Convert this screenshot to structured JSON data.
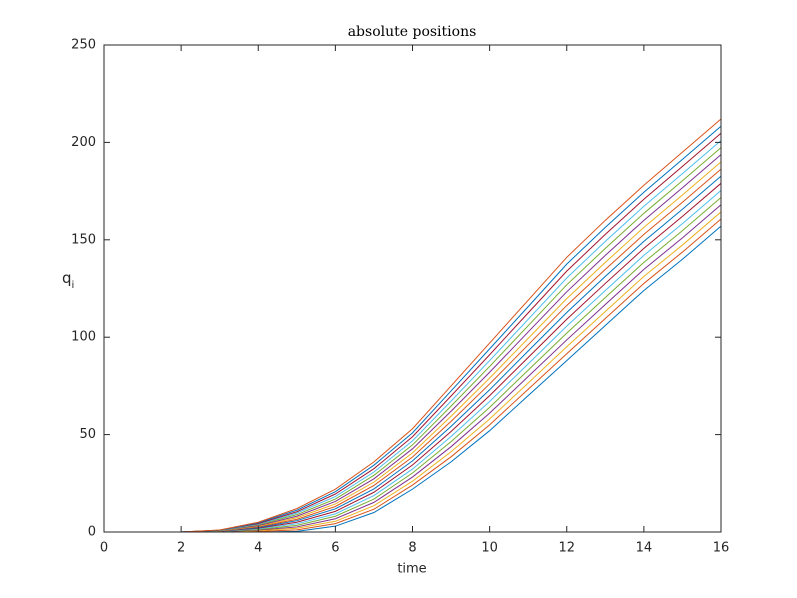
{
  "chart_data": {
    "type": "line",
    "title": "absolute positions",
    "xlabel": "time",
    "ylabel": {
      "text": "q",
      "subscript": "i"
    },
    "x": [
      0,
      1,
      2,
      3,
      4,
      5,
      6,
      7,
      8,
      9,
      10,
      11,
      12,
      13,
      14,
      15,
      16
    ],
    "xlim": [
      0,
      16
    ],
    "xticks": [
      0,
      2,
      4,
      6,
      8,
      10,
      12,
      14,
      16
    ],
    "ylim": [
      0,
      250
    ],
    "yticks": [
      0,
      50,
      100,
      150,
      200,
      250
    ],
    "series": [
      {
        "color": "#0072bd",
        "values": [
          0,
          0,
          0,
          0,
          0,
          0.3,
          3,
          10,
          22,
          36,
          52,
          70,
          88,
          106,
          124,
          140,
          157
        ]
      },
      {
        "color": "#d95319",
        "values": [
          0,
          0,
          0,
          0.1,
          0.3,
          1.1,
          4.3,
          11.7,
          24.1,
          38.6,
          55,
          73.3,
          91.5,
          109.6,
          127.6,
          143.7,
          160.7
        ]
      },
      {
        "color": "#edb120",
        "values": [
          0,
          0,
          0,
          0.1,
          0.7,
          1.9,
          5.5,
          13.5,
          26.1,
          41.2,
          58,
          76.5,
          95.1,
          113.2,
          131.2,
          147.3,
          164.3
        ]
      },
      {
        "color": "#7e2f8e",
        "values": [
          0,
          0,
          0,
          0.2,
          1,
          2.6,
          6.8,
          15.2,
          28.2,
          43.8,
          61,
          79.8,
          98.6,
          116.8,
          134.8,
          151,
          168
        ]
      },
      {
        "color": "#77ac30",
        "values": [
          0,
          0,
          0,
          0.3,
          1.3,
          3.4,
          8.1,
          16.9,
          30.3,
          46.4,
          64,
          83.1,
          102.1,
          120.4,
          138.4,
          154.7,
          171.7
        ]
      },
      {
        "color": "#4dbeee",
        "values": [
          0,
          0,
          0,
          0.3,
          1.7,
          4.2,
          9.3,
          18.7,
          32.3,
          49,
          67,
          86.3,
          105.7,
          124,
          142,
          158.3,
          175.3
        ]
      },
      {
        "color": "#a2142f",
        "values": [
          0,
          0,
          0,
          0.4,
          2,
          5,
          10.6,
          20.4,
          34.4,
          51.6,
          70,
          89.6,
          109.2,
          127.6,
          145.6,
          162,
          179
        ]
      },
      {
        "color": "#0072bd",
        "values": [
          0,
          0,
          0,
          0.5,
          2.3,
          5.8,
          11.9,
          22.1,
          36.5,
          54.2,
          73,
          92.9,
          112.7,
          131.2,
          149.2,
          165.7,
          182.7
        ]
      },
      {
        "color": "#d95319",
        "values": [
          0,
          0,
          0,
          0.5,
          2.7,
          6.5,
          13.1,
          23.9,
          38.5,
          56.8,
          76,
          96.1,
          116.3,
          134.8,
          152.8,
          169.3,
          186.3
        ]
      },
      {
        "color": "#edb120",
        "values": [
          0,
          0,
          0,
          0.6,
          3,
          7.3,
          14.4,
          25.6,
          40.6,
          59.4,
          79,
          99.4,
          119.8,
          138.4,
          156.4,
          173,
          190
        ]
      },
      {
        "color": "#7e2f8e",
        "values": [
          0,
          0,
          0,
          0.7,
          3.3,
          8.1,
          15.7,
          27.3,
          42.7,
          62,
          82,
          102.7,
          123.3,
          142,
          160,
          176.7,
          193.7
        ]
      },
      {
        "color": "#77ac30",
        "values": [
          0,
          0,
          0,
          0.7,
          3.7,
          8.9,
          16.9,
          29.1,
          44.7,
          64.6,
          85,
          105.9,
          126.9,
          145.6,
          163.6,
          180.3,
          197.3
        ]
      },
      {
        "color": "#4dbeee",
        "values": [
          0,
          0,
          0,
          0.8,
          4,
          9.7,
          18.2,
          30.8,
          46.8,
          67.2,
          88,
          109.2,
          130.4,
          149.2,
          167.2,
          184,
          201
        ]
      },
      {
        "color": "#a2142f",
        "values": [
          0,
          0,
          0,
          0.9,
          4.3,
          10.4,
          19.5,
          32.5,
          48.9,
          69.8,
          91,
          112.5,
          133.9,
          152.8,
          170.8,
          187.7,
          204.7
        ]
      },
      {
        "color": "#0072bd",
        "values": [
          0,
          0,
          0,
          0.9,
          4.7,
          11.2,
          20.7,
          34.3,
          50.9,
          72.4,
          94,
          115.7,
          137.5,
          156.4,
          174.4,
          191.3,
          208.3
        ]
      },
      {
        "color": "#d95319",
        "values": [
          0,
          0,
          0,
          1,
          5,
          12,
          22,
          36,
          53,
          75,
          97,
          119,
          141,
          160,
          178,
          195,
          212
        ]
      }
    ]
  }
}
